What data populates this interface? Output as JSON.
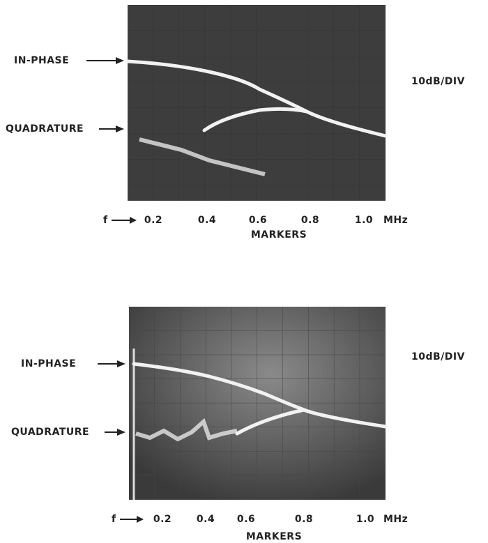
{
  "panels": [
    {
      "in_phase": "IN-PHASE",
      "quadrature": "QUADRATURE",
      "scale": "10dB/DIV",
      "f": "f",
      "ticks": [
        "0.2",
        "0.4",
        "0.6",
        "0.8",
        "1.0"
      ],
      "unit": "MHz",
      "axis_title": "MARKERS"
    },
    {
      "in_phase": "IN-PHASE",
      "quadrature": "QUADRATURE",
      "scale": "10dB/DIV",
      "f": "f",
      "ticks": [
        "0.2",
        "0.4",
        "0.6",
        "0.8",
        "1.0"
      ],
      "unit": "MHz",
      "axis_title": "MARKERS"
    }
  ]
}
